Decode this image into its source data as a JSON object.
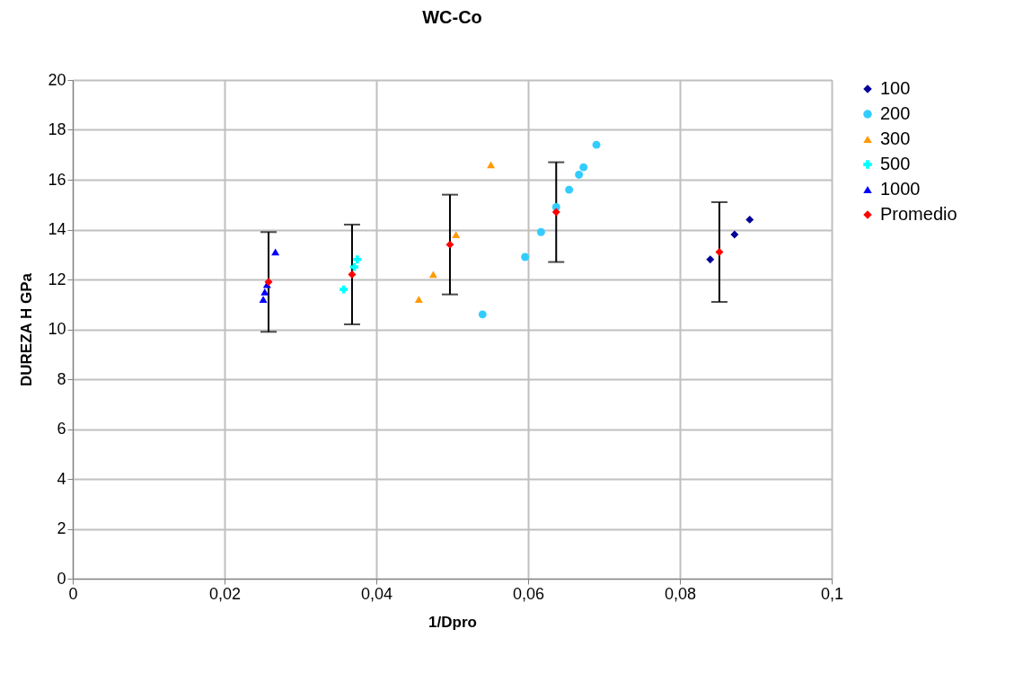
{
  "chart_data": {
    "type": "scatter",
    "title": "WC-Co",
    "xlabel": "1/Dpro",
    "ylabel": "DUREZA H GPa",
    "xlim": [
      0,
      0.1
    ],
    "xticks": [
      0,
      {
        "value": 0.02,
        "label": "0,02"
      },
      {
        "value": 0.04,
        "label": "0,04"
      },
      {
        "value": 0.06,
        "label": "0,06"
      },
      {
        "value": 0.08,
        "label": "0,08"
      },
      {
        "value": 0.1,
        "label": "0,1"
      }
    ],
    "ylim": [
      0,
      20
    ],
    "yticks": [
      0,
      2,
      4,
      6,
      8,
      10,
      12,
      14,
      16,
      18,
      20
    ],
    "grid": true,
    "legend": "right",
    "series": [
      {
        "name": "100",
        "color": "#000099",
        "marker": "diamond",
        "x": [
          0.084,
          0.0872,
          0.0892
        ],
        "values": [
          12.8,
          13.8,
          14.4
        ]
      },
      {
        "name": "200",
        "color": "#33ccff",
        "marker": "circle",
        "x": [
          0.054,
          0.0596,
          0.0617,
          0.0637,
          0.0654,
          0.0667,
          0.0673,
          0.069
        ],
        "values": [
          10.6,
          12.9,
          13.9,
          14.9,
          15.6,
          16.2,
          16.5,
          17.4
        ]
      },
      {
        "name": "300",
        "color": "#ff9900",
        "marker": "triangle",
        "x": [
          0.0456,
          0.0475,
          0.0505,
          0.0551
        ],
        "values": [
          11.2,
          12.2,
          13.8,
          16.6
        ]
      },
      {
        "name": "500",
        "color": "#00ffff",
        "marker": "cross",
        "x": [
          0.0357,
          0.0371,
          0.0375
        ],
        "values": [
          11.6,
          12.5,
          12.8
        ]
      },
      {
        "name": "1000",
        "color": "#0000ff",
        "marker": "triangle",
        "x": [
          0.0251,
          0.0253,
          0.0256,
          0.0267
        ],
        "values": [
          11.2,
          11.5,
          11.8,
          13.1
        ]
      },
      {
        "name": "Promedio",
        "color": "#ff0000",
        "marker": "diamond",
        "x": [
          0.0258,
          0.0368,
          0.0497,
          0.0637,
          0.0852
        ],
        "values": [
          11.9,
          12.2,
          13.4,
          14.7,
          13.1
        ],
        "errors": [
          2,
          2,
          2,
          2,
          2
        ]
      }
    ]
  }
}
